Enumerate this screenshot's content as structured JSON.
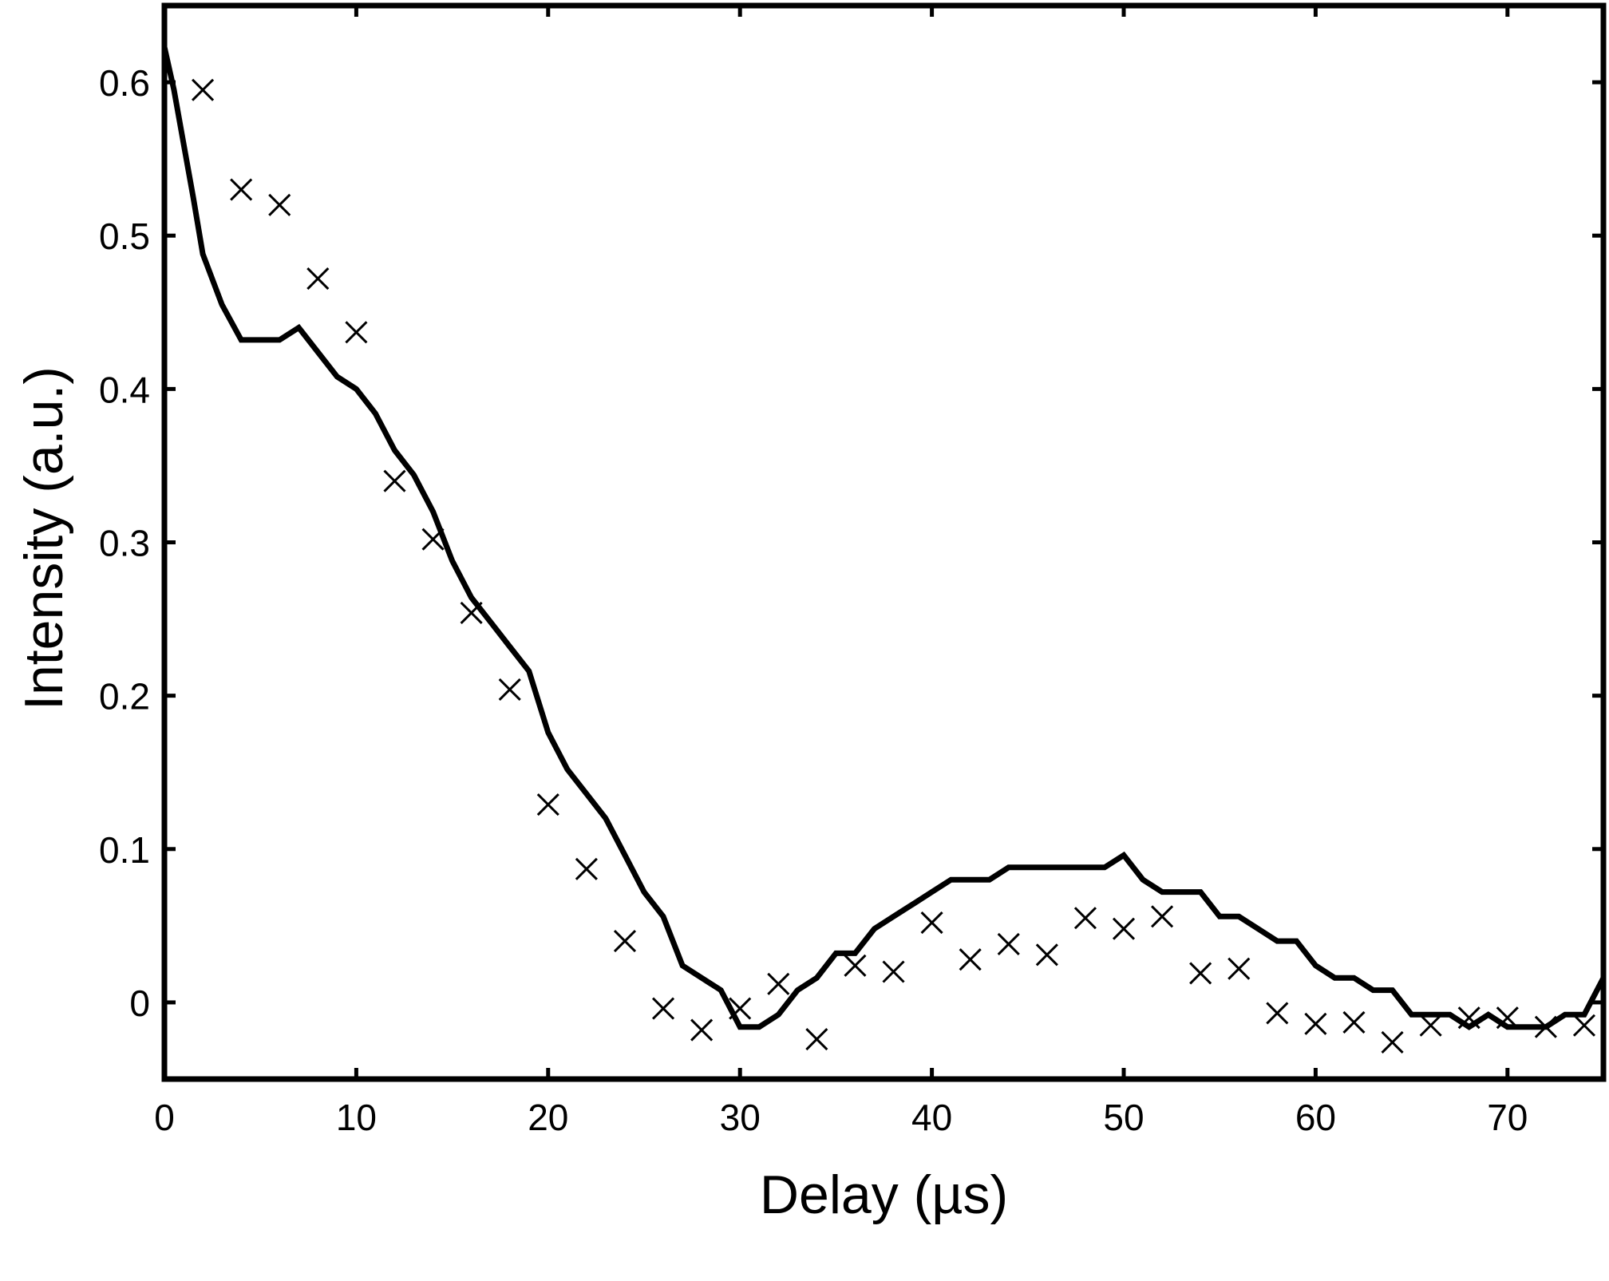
{
  "chart_data": {
    "type": "line",
    "title": "",
    "xlabel": "Delay (µs)",
    "ylabel": "Intensity (a.u.)",
    "xlim": [
      0,
      75
    ],
    "ylim": [
      -0.05,
      0.65
    ],
    "xticks": [
      0,
      10,
      20,
      30,
      40,
      50,
      60,
      70
    ],
    "yticks": [
      0,
      0.1,
      0.2,
      0.3,
      0.4,
      0.5,
      0.6
    ],
    "grid": false,
    "legend": "none",
    "colors": {
      "line": "#000000",
      "markers": "#000000",
      "axes": "#000000"
    },
    "series": [
      {
        "style": "line",
        "x": [
          0,
          0.5,
          1,
          1.5,
          2,
          3,
          4,
          5,
          6,
          7,
          8,
          9,
          10,
          11,
          12,
          13,
          14,
          15,
          16,
          17,
          18,
          19,
          20,
          21,
          22,
          23,
          24,
          25,
          26,
          27,
          28,
          29,
          30,
          31,
          32,
          33,
          34,
          35,
          36,
          37,
          38,
          39,
          40,
          41,
          42,
          43,
          44,
          45,
          46,
          47,
          48,
          49,
          50,
          51,
          52,
          53,
          54,
          55,
          56,
          57,
          58,
          59,
          60,
          61,
          62,
          63,
          64,
          65,
          66,
          67,
          68,
          69,
          70,
          71,
          72,
          73,
          74,
          75
        ],
        "y": [
          0.623,
          0.595,
          0.56,
          0.525,
          0.488,
          0.455,
          0.432,
          0.432,
          0.432,
          0.44,
          0.424,
          0.408,
          0.4,
          0.384,
          0.36,
          0.344,
          0.32,
          0.288,
          0.264,
          0.248,
          0.232,
          0.216,
          0.176,
          0.152,
          0.136,
          0.12,
          0.096,
          0.072,
          0.056,
          0.024,
          0.016,
          0.008,
          -0.016,
          -0.016,
          -0.008,
          0.008,
          0.016,
          0.032,
          0.032,
          0.048,
          0.056,
          0.064,
          0.072,
          0.08,
          0.08,
          0.08,
          0.088,
          0.088,
          0.088,
          0.088,
          0.088,
          0.088,
          0.096,
          0.08,
          0.072,
          0.072,
          0.072,
          0.056,
          0.056,
          0.048,
          0.04,
          0.04,
          0.024,
          0.016,
          0.016,
          0.008,
          0.008,
          -0.008,
          -0.008,
          -0.008,
          -0.016,
          -0.008,
          -0.016,
          -0.016,
          -0.016,
          -0.008,
          -0.008,
          0.016
        ]
      },
      {
        "style": "scatter",
        "marker": "x",
        "x": [
          2,
          4,
          6,
          8,
          10,
          12,
          14,
          16,
          18,
          20,
          22,
          24,
          26,
          28,
          30,
          32,
          34,
          36,
          38,
          40,
          42,
          44,
          46,
          48,
          50,
          52,
          54,
          56,
          58,
          60,
          62,
          64,
          66,
          68,
          70,
          72,
          74
        ],
        "y": [
          0.595,
          0.53,
          0.52,
          0.472,
          0.437,
          0.34,
          0.302,
          0.254,
          0.204,
          0.129,
          0.087,
          0.04,
          -0.004,
          -0.018,
          -0.004,
          0.012,
          -0.024,
          0.024,
          0.02,
          0.052,
          0.028,
          0.038,
          0.031,
          0.055,
          0.048,
          0.056,
          0.019,
          0.022,
          -0.007,
          -0.014,
          -0.013,
          -0.026,
          -0.015,
          -0.01,
          -0.01,
          -0.016,
          -0.015
        ]
      }
    ]
  }
}
